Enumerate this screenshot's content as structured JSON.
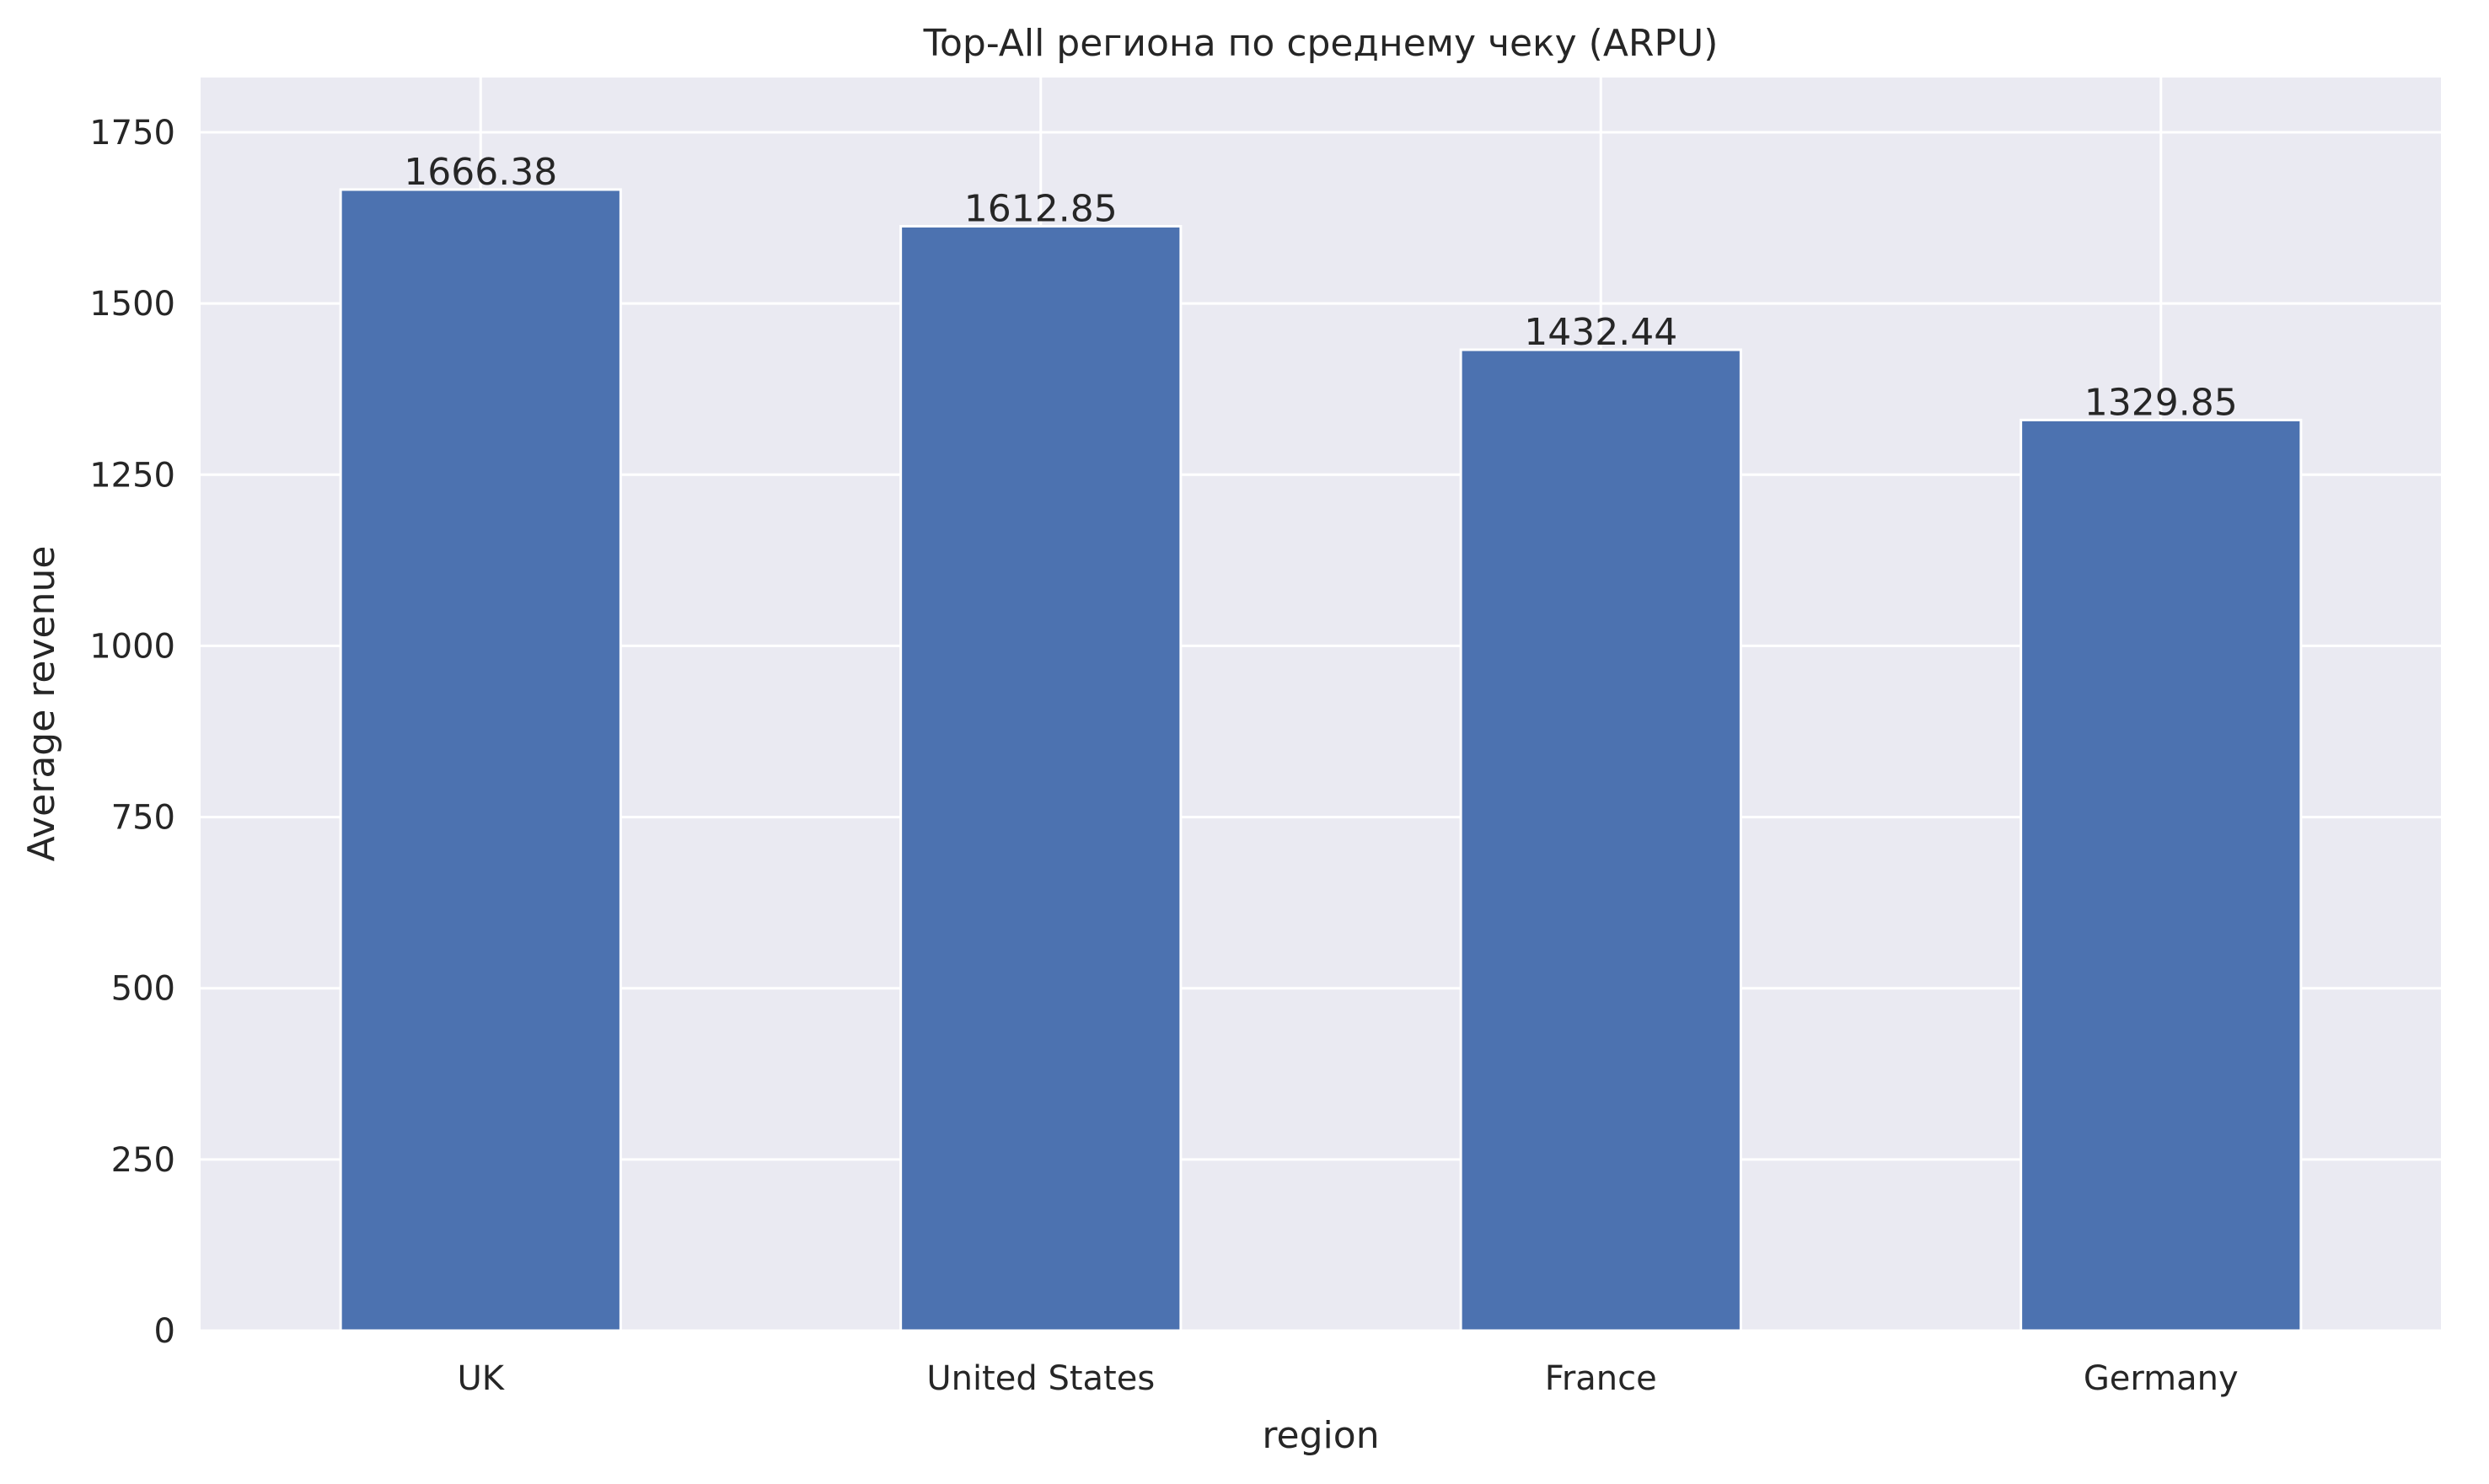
{
  "chart_data": {
    "type": "bar",
    "title": "Top-All региона по среднему чеку (ARPU)",
    "xlabel": "region",
    "ylabel": "Average revenue",
    "categories": [
      "UK",
      "United States",
      "France",
      "Germany"
    ],
    "values": [
      1666.38,
      1612.85,
      1432.44,
      1329.85
    ],
    "value_labels": [
      "1666.38",
      "1612.85",
      "1432.44",
      "1329.85"
    ],
    "ylim": [
      0,
      1830
    ],
    "yticks": [
      0,
      250,
      500,
      750,
      1000,
      1250,
      1500,
      1750
    ],
    "ytick_labels": [
      "0",
      "250",
      "500",
      "750",
      "1000",
      "1250",
      "1500",
      "1750"
    ],
    "grid": true,
    "colors": {
      "bar": "#4c72b0",
      "plot_background": "#eaeaf2",
      "grid": "#ffffff",
      "text": "#262626"
    }
  }
}
